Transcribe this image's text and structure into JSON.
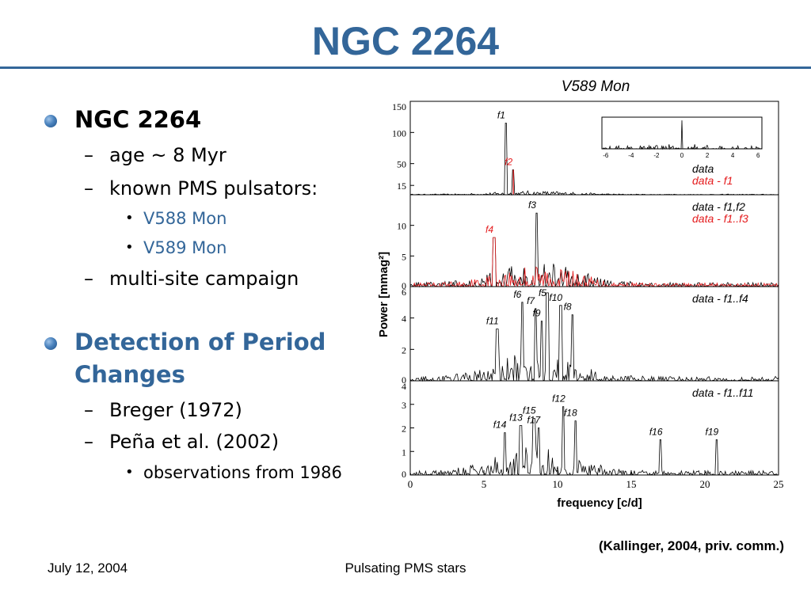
{
  "slide": {
    "title": "NGC 2264"
  },
  "bullets": {
    "b1": {
      "heading": "NGC 2264",
      "items": [
        "age ~ 8 Myr",
        "known PMS pulsators:"
      ],
      "pulsators": [
        "V588 Mon",
        "V589 Mon"
      ],
      "campaign": "multi-site campaign"
    },
    "b2": {
      "heading_line1": "Detection of Period",
      "heading_line2": "Changes",
      "items": [
        "Breger (1972)",
        "Peña et al. (2002)"
      ],
      "sub": "observations from 1986"
    }
  },
  "colors": {
    "accent": "#336699",
    "link": "#336699",
    "data": "#000000",
    "residual": "#e41a1c"
  },
  "figure": {
    "title": "V589 Mon",
    "ylabel": "Power [mmag²]",
    "xlabel": "frequency [c/d]",
    "credit": "(Kallinger, 2004, priv. comm.)"
  },
  "chart_data": {
    "type": "line",
    "title": "V589 Mon",
    "xlabel": "frequency [c/d]",
    "ylabel": "Power [mmag²]",
    "xlim": [
      0,
      25
    ],
    "xticks": [
      0,
      5,
      10,
      15,
      20,
      25
    ],
    "panels": [
      {
        "ylim": [
          0,
          150
        ],
        "yticks": [
          "15",
          "50",
          "100",
          "150"
        ],
        "legend": [
          "data",
          "data - f1"
        ],
        "peaks": [
          {
            "label": "f1",
            "x": 6.5,
            "y": 115,
            "color": "black"
          },
          {
            "label": "f2",
            "x": 7.0,
            "y": 40,
            "color": "red"
          }
        ],
        "inset": {
          "xticks": [
            "-6",
            "-4",
            "-2",
            "0",
            "2",
            "4",
            "6"
          ]
        }
      },
      {
        "ylim": [
          0,
          15
        ],
        "yticks": [
          "0",
          "5",
          "10"
        ],
        "legend": [
          "data - f1,f2",
          "data - f1..f3"
        ],
        "peaks": [
          {
            "label": "f3",
            "x": 8.6,
            "y": 12,
            "color": "black"
          },
          {
            "label": "f4",
            "x": 5.7,
            "y": 8,
            "color": "red"
          }
        ]
      },
      {
        "ylim": [
          0,
          6
        ],
        "yticks": [
          "0",
          "2",
          "4",
          "6"
        ],
        "legend": [
          "data - f1..f4"
        ],
        "peaks": [
          {
            "label": "f6",
            "x": 7.6,
            "y": 5.0
          },
          {
            "label": "f7",
            "x": 8.5,
            "y": 4.6
          },
          {
            "label": "f5",
            "x": 9.3,
            "y": 5.6
          },
          {
            "label": "f10",
            "x": 10.2,
            "y": 4.8
          },
          {
            "label": "f11",
            "x": 5.9,
            "y": 3.3
          },
          {
            "label": "f9",
            "x": 8.9,
            "y": 3.8
          },
          {
            "label": "f8",
            "x": 11.0,
            "y": 4.2
          }
        ]
      },
      {
        "ylim": [
          0,
          4
        ],
        "yticks": [
          "0",
          "1",
          "2",
          "3",
          "4"
        ],
        "legend": [
          "data - f1..f11"
        ],
        "peaks": [
          {
            "label": "f12",
            "x": 10.4,
            "y": 2.9
          },
          {
            "label": "f15",
            "x": 8.4,
            "y": 2.4
          },
          {
            "label": "f13",
            "x": 7.5,
            "y": 2.1
          },
          {
            "label": "f14",
            "x": 6.4,
            "y": 1.8
          },
          {
            "label": "f17",
            "x": 8.7,
            "y": 2.0
          },
          {
            "label": "f18",
            "x": 11.2,
            "y": 2.3
          },
          {
            "label": "f16",
            "x": 17.0,
            "y": 1.5
          },
          {
            "label": "f19",
            "x": 20.8,
            "y": 1.5
          }
        ]
      }
    ]
  },
  "footer": {
    "date": "July 12, 2004",
    "center": "Pulsating PMS stars"
  }
}
